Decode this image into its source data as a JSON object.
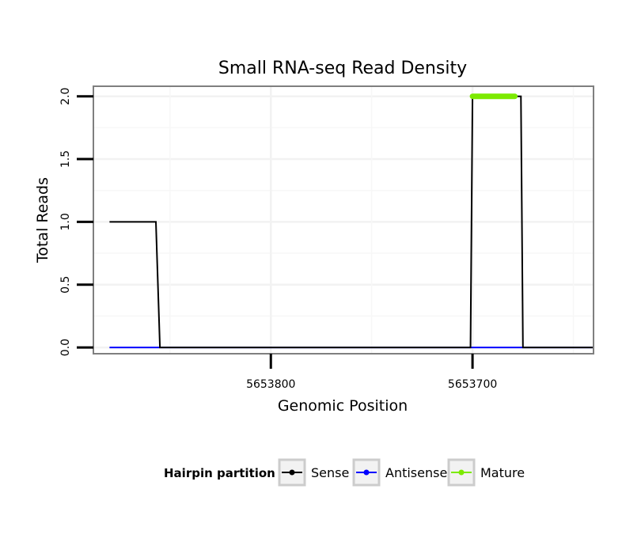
{
  "chart_data": {
    "type": "line",
    "title": "Small RNA-seq Read Density",
    "xlabel": "Genomic Position",
    "ylabel": "Total Reads",
    "x_reversed": true,
    "xlim": [
      5653888,
      5653640
    ],
    "ylim": [
      -0.05,
      2.08
    ],
    "x_ticks": [
      5653800,
      5653700
    ],
    "x_tick_labels": [
      "5653800",
      "5653700"
    ],
    "y_ticks": [
      0.0,
      0.5,
      1.0,
      1.5,
      2.0
    ],
    "y_tick_labels": [
      "0.0",
      "0.5",
      "1.0",
      "1.5",
      "2.0"
    ],
    "series": [
      {
        "name": "Sense",
        "color": "#000000",
        "x": [
          5653880,
          5653857,
          5653855,
          5653701,
          5653700,
          5653676,
          5653675,
          5653640
        ],
        "y": [
          1,
          1,
          0,
          0,
          2,
          2,
          0,
          0
        ]
      },
      {
        "name": "Antisense",
        "color": "#0000ff",
        "x": [
          5653880,
          5653640
        ],
        "y": [
          0,
          0
        ]
      },
      {
        "name": "Mature",
        "color": "#7cea00",
        "x": [
          5653700,
          5653679
        ],
        "y": [
          2,
          2
        ]
      }
    ],
    "legend": {
      "title": "Hairpin partition",
      "position": "bottom",
      "items": [
        "Sense",
        "Antisense",
        "Mature"
      ]
    }
  }
}
